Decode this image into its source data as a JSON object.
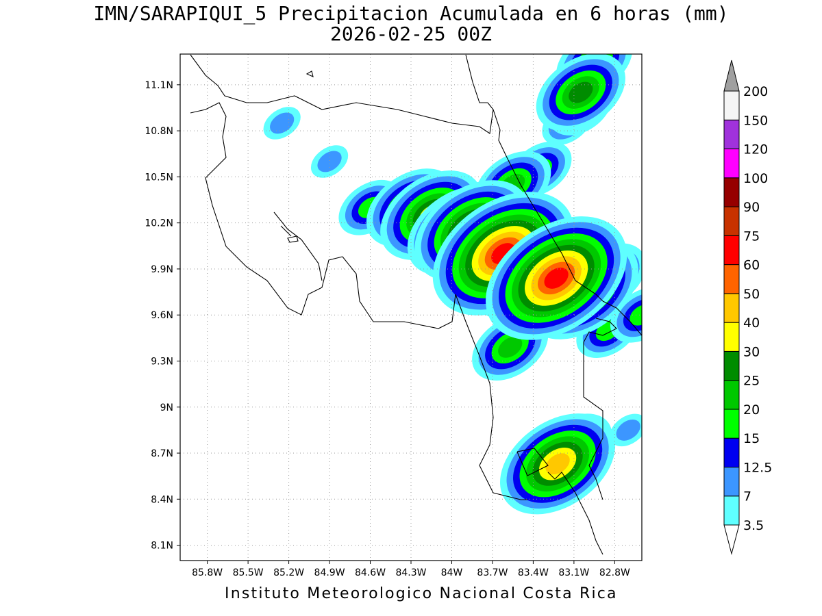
{
  "title": {
    "line1": "IMN/SARAPIQUI_5 Precipitacion Acumulada en 6 horas (mm)",
    "line2": "2026-02-25 00Z"
  },
  "footer": "Instituto Meteorologico Nacional Costa Rica",
  "map": {
    "lon_range": [
      -86.0,
      -82.6
    ],
    "lat_range": [
      8.0,
      11.3
    ],
    "lon_ticks": [
      {
        "value": -85.8,
        "label": "85.8W"
      },
      {
        "value": -85.5,
        "label": "85.5W"
      },
      {
        "value": -85.2,
        "label": "85.2W"
      },
      {
        "value": -84.9,
        "label": "84.9W"
      },
      {
        "value": -84.6,
        "label": "84.6W"
      },
      {
        "value": -84.3,
        "label": "84.3W"
      },
      {
        "value": -84.0,
        "label": "84W"
      },
      {
        "value": -83.7,
        "label": "83.7W"
      },
      {
        "value": -83.4,
        "label": "83.4W"
      },
      {
        "value": -83.1,
        "label": "83.1W"
      },
      {
        "value": -82.8,
        "label": "82.8W"
      }
    ],
    "lat_ticks": [
      {
        "value": 8.1,
        "label": "8.1N"
      },
      {
        "value": 8.4,
        "label": "8.4N"
      },
      {
        "value": 8.7,
        "label": "8.7N"
      },
      {
        "value": 9.0,
        "label": "9N"
      },
      {
        "value": 9.3,
        "label": "9.3N"
      },
      {
        "value": 9.6,
        "label": "9.6N"
      },
      {
        "value": 9.9,
        "label": "9.9N"
      },
      {
        "value": 10.2,
        "label": "10.2N"
      },
      {
        "value": 10.5,
        "label": "10.5N"
      },
      {
        "value": 10.8,
        "label": "10.8N"
      },
      {
        "value": 11.1,
        "label": "11.1N"
      }
    ],
    "grid": "dotted",
    "precip_cells": [
      {
        "lon": -83.05,
        "lat": 10.95,
        "mm": 15
      },
      {
        "lon": -83.05,
        "lat": 11.05,
        "mm": 25
      },
      {
        "lon": -83.15,
        "lat": 10.85,
        "mm": 12.5
      },
      {
        "lon": -82.95,
        "lat": 11.25,
        "mm": 20
      },
      {
        "lon": -83.35,
        "lat": 10.55,
        "mm": 15
      },
      {
        "lon": -83.55,
        "lat": 10.45,
        "mm": 20
      },
      {
        "lon": -83.75,
        "lat": 10.3,
        "mm": 15
      },
      {
        "lon": -84.3,
        "lat": 10.3,
        "mm": 25
      },
      {
        "lon": -84.15,
        "lat": 10.25,
        "mm": 30
      },
      {
        "lon": -84.05,
        "lat": 10.2,
        "mm": 20
      },
      {
        "lon": -83.85,
        "lat": 10.15,
        "mm": 40
      },
      {
        "lon": -83.95,
        "lat": 10.15,
        "mm": 30
      },
      {
        "lon": -83.75,
        "lat": 10.05,
        "mm": 25
      },
      {
        "lon": -83.62,
        "lat": 10.0,
        "mm": 60
      },
      {
        "lon": -83.65,
        "lat": 9.95,
        "mm": 40
      },
      {
        "lon": -83.45,
        "lat": 9.9,
        "mm": 40
      },
      {
        "lon": -83.23,
        "lat": 9.84,
        "mm": 60
      },
      {
        "lon": -83.3,
        "lat": 9.8,
        "mm": 30
      },
      {
        "lon": -83.05,
        "lat": 9.77,
        "mm": 40
      },
      {
        "lon": -82.85,
        "lat": 9.85,
        "mm": 20
      },
      {
        "lon": -83.0,
        "lat": 9.7,
        "mm": 20
      },
      {
        "lon": -82.85,
        "lat": 9.5,
        "mm": 15
      },
      {
        "lon": -84.6,
        "lat": 10.3,
        "mm": 15
      },
      {
        "lon": -84.9,
        "lat": 10.6,
        "mm": 7
      },
      {
        "lon": -85.25,
        "lat": 10.85,
        "mm": 7
      },
      {
        "lon": -83.57,
        "lat": 9.39,
        "mm": 20
      },
      {
        "lon": -83.22,
        "lat": 8.63,
        "mm": 40
      },
      {
        "lon": -83.1,
        "lat": 8.74,
        "mm": 20
      },
      {
        "lon": -82.6,
        "lat": 9.6,
        "mm": 15
      },
      {
        "lon": -82.7,
        "lat": 8.85,
        "mm": 7
      }
    ]
  },
  "colorbar": {
    "under_color": "#ffffff",
    "over_color": "#a0a0a0",
    "levels": [
      {
        "label": "3.5",
        "color": "#5fffff"
      },
      {
        "label": "7",
        "color": "#3c96ff"
      },
      {
        "label": "12.5",
        "color": "#0000f0"
      },
      {
        "label": "15",
        "color": "#00ff00"
      },
      {
        "label": "20",
        "color": "#00c800"
      },
      {
        "label": "25",
        "color": "#008c00"
      },
      {
        "label": "30",
        "color": "#ffff00"
      },
      {
        "label": "40",
        "color": "#ffc800"
      },
      {
        "label": "50",
        "color": "#ff6400"
      },
      {
        "label": "60",
        "color": "#ff0000"
      },
      {
        "label": "75",
        "color": "#c83200"
      },
      {
        "label": "90",
        "color": "#960000"
      },
      {
        "label": "100",
        "color": "#ff00ff"
      },
      {
        "label": "120",
        "color": "#a032dc"
      },
      {
        "label": "150",
        "color": "#f5f5f5"
      },
      {
        "label": "200",
        "color": ""
      }
    ]
  }
}
